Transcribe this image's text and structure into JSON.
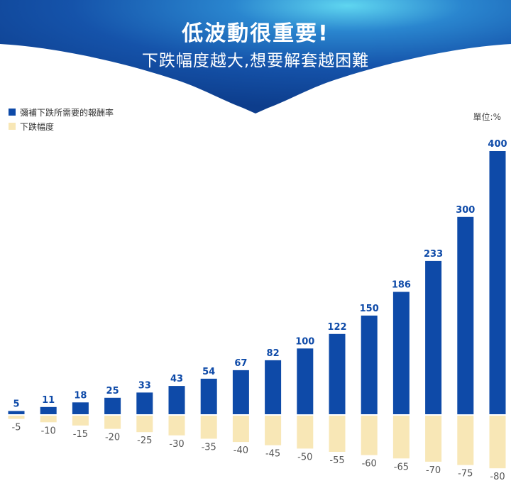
{
  "header": {
    "title": "低波動很重要!",
    "subtitle": "下跌幅度越大,想要解套越困難"
  },
  "unit_label": "單位:%",
  "colors": {
    "banner_top": "#1a5fb4",
    "banner_bottom": "#0d3d8c",
    "recovery": "#0e4aa8",
    "drop": "#f8e7b6",
    "recovery_label": "#0e4aa8",
    "drop_label": "#555555"
  },
  "chart_data": {
    "type": "bar",
    "categories": [
      "-5",
      "-10",
      "-15",
      "-20",
      "-25",
      "-30",
      "-35",
      "-40",
      "-45",
      "-50",
      "-55",
      "-60",
      "-65",
      "-70",
      "-75",
      "-80"
    ],
    "series": [
      {
        "name": "彌補下跌所需要的報酬率",
        "values": [
          5,
          11,
          18,
          25,
          33,
          43,
          54,
          67,
          82,
          100,
          122,
          150,
          186,
          233,
          300,
          400
        ]
      },
      {
        "name": "下跌幅度",
        "values": [
          -5,
          -10,
          -15,
          -20,
          -25,
          -30,
          -35,
          -40,
          -45,
          -50,
          -55,
          -60,
          -65,
          -70,
          -75,
          -80
        ]
      }
    ],
    "legend_position": "top-left",
    "grid": false
  }
}
